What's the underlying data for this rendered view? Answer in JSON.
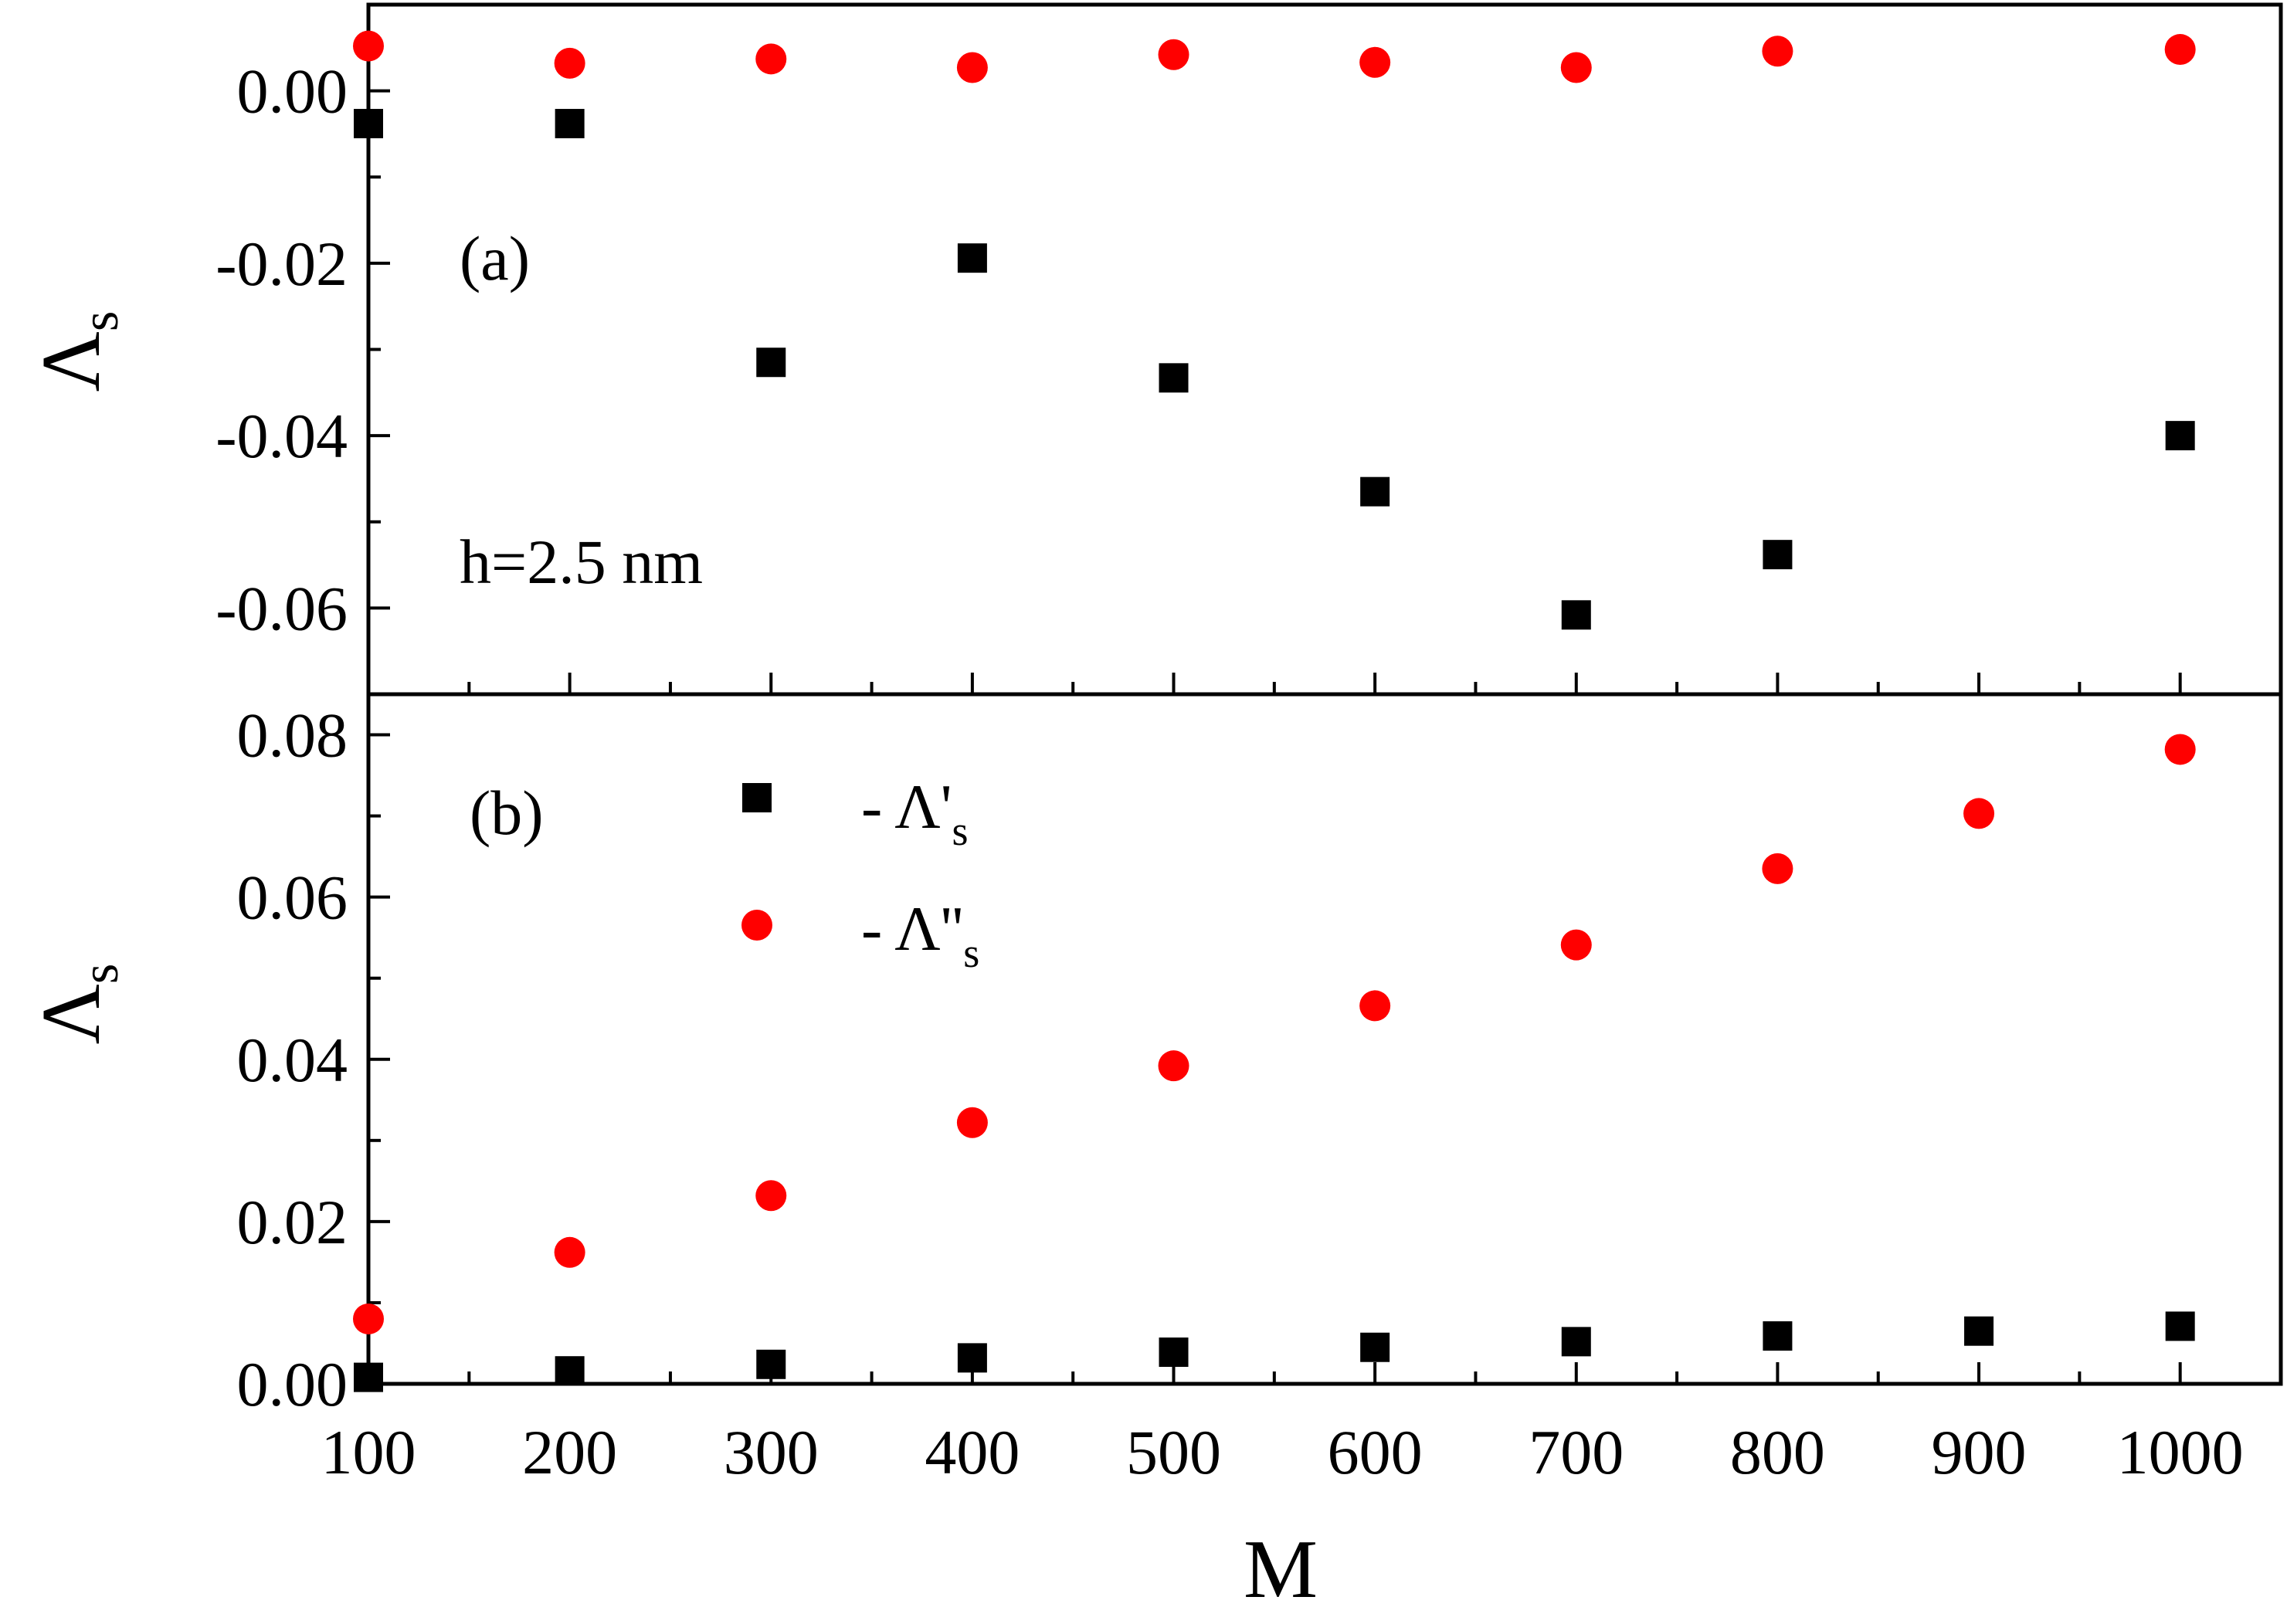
{
  "figure": {
    "x_axis_label": "M"
  },
  "chart_data": [
    {
      "panel_label": "(a)",
      "type": "scatter",
      "annotation": "h=2.5 nm",
      "ylabel_main": "Λ",
      "ylabel_sub": "s",
      "xlim": [
        100,
        1050
      ],
      "ylim": [
        -0.07,
        0.01
      ],
      "x_ticks": [
        100,
        200,
        300,
        400,
        500,
        600,
        700,
        800,
        900,
        1000
      ],
      "y_ticks": [
        0.0,
        -0.02,
        -0.04,
        -0.06
      ],
      "y_tick_labels": [
        "0.00",
        "-0.02",
        "-0.04",
        "-0.06"
      ],
      "series": [
        {
          "name": "Λ's",
          "marker": "square",
          "color": "#000000",
          "x": [
            100,
            200,
            400,
            300,
            500,
            600,
            700,
            800,
            1000
          ],
          "y": [
            -0.0038,
            -0.0038,
            -0.0194,
            -0.0315,
            -0.0333,
            -0.0465,
            -0.0608,
            -0.0538,
            -0.04
          ]
        },
        {
          "name": "Λ''s",
          "marker": "circle",
          "color": "#ff0000",
          "x": [
            100,
            200,
            300,
            400,
            500,
            600,
            700,
            800,
            1000
          ],
          "y": [
            0.0052,
            0.0032,
            0.0037,
            0.0027,
            0.0042,
            0.0033,
            0.0027,
            0.0046,
            0.0048
          ]
        }
      ]
    },
    {
      "panel_label": "(b)",
      "type": "scatter",
      "ylabel_main": "Λ",
      "ylabel_sub": "s",
      "xlabel": "M",
      "xlim": [
        100,
        1050
      ],
      "ylim": [
        0.0,
        0.085
      ],
      "x_ticks": [
        100,
        200,
        300,
        400,
        500,
        600,
        700,
        800,
        900,
        1000
      ],
      "x_tick_labels": [
        "100",
        "200",
        "300",
        "400",
        "500",
        "600",
        "700",
        "800",
        "900",
        "1000"
      ],
      "y_ticks": [
        0.0,
        0.02,
        0.04,
        0.06,
        0.08
      ],
      "y_tick_labels": [
        "0.00",
        "0.02",
        "0.04",
        "0.06",
        "0.08"
      ],
      "legend": {
        "location": "top-left",
        "entries": [
          {
            "prefix": "- Λ'",
            "sub": "s",
            "series": 0
          },
          {
            "prefix": "- Λ''",
            "sub": "s",
            "series": 1
          }
        ]
      },
      "series": [
        {
          "name": "Λ's",
          "marker": "square",
          "color": "#000000",
          "x": [
            100,
            200,
            300,
            400,
            500,
            600,
            700,
            800,
            900,
            1000
          ],
          "y": [
            0.0008,
            0.0016,
            0.0024,
            0.0032,
            0.0039,
            0.0045,
            0.0052,
            0.0059,
            0.0065,
            0.0071
          ]
        },
        {
          "name": "Λ''s",
          "marker": "circle",
          "color": "#ff0000",
          "x": [
            100,
            200,
            300,
            400,
            500,
            600,
            700,
            800,
            900,
            1000
          ],
          "y": [
            0.008,
            0.0162,
            0.0232,
            0.0322,
            0.0392,
            0.0466,
            0.0541,
            0.0635,
            0.0703,
            0.0782
          ]
        }
      ]
    }
  ]
}
